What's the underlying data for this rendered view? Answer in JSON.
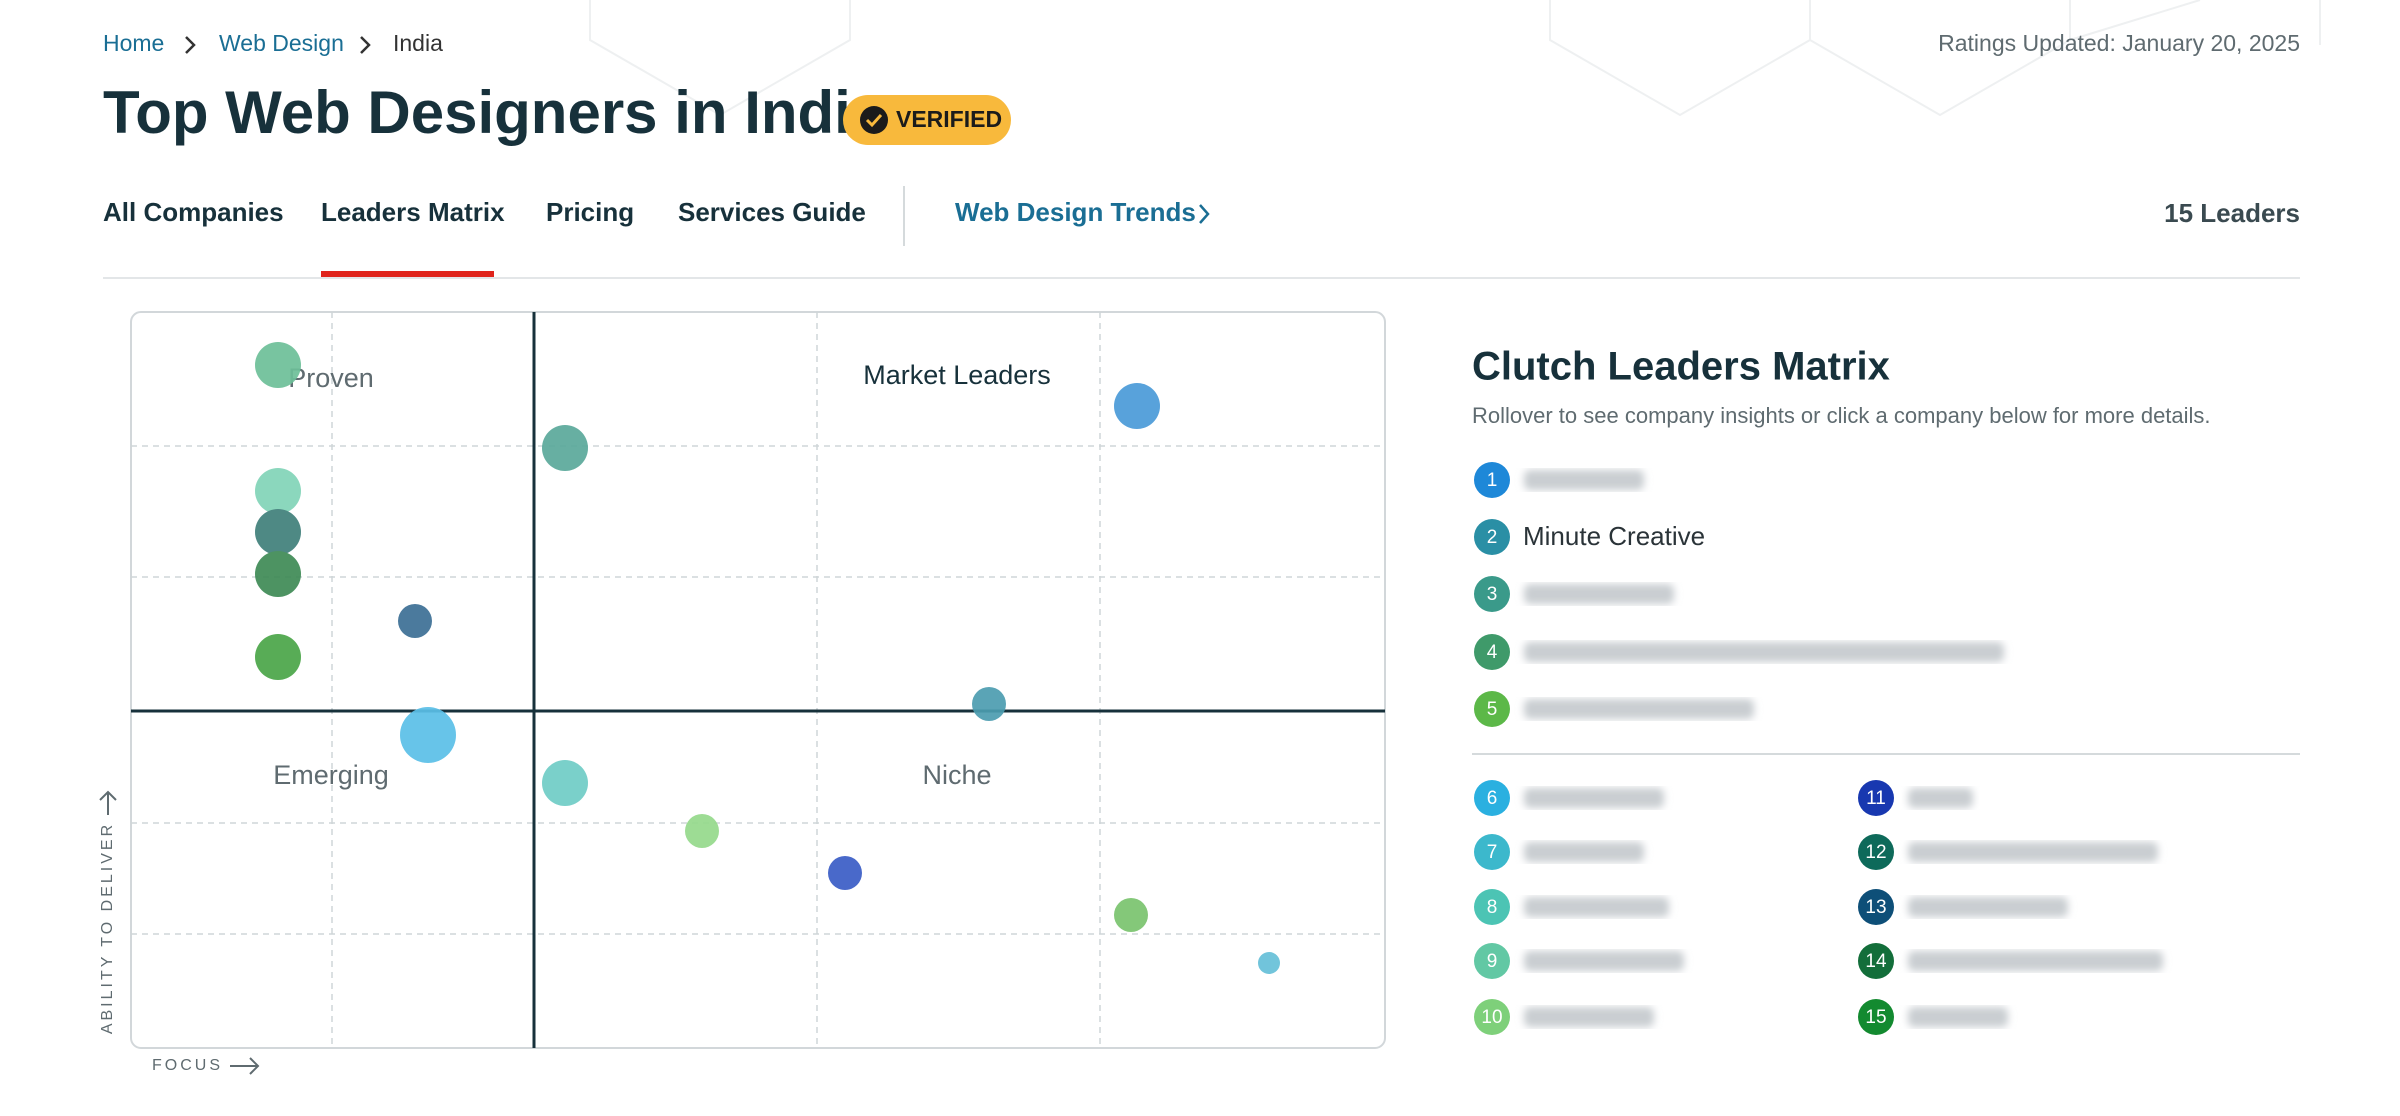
{
  "breadcrumb": [
    "Home",
    "Web Design",
    "India"
  ],
  "ratings_updated": "Ratings Updated: January 20, 2025",
  "title": "Top Web Designers in India",
  "badge": "VERIFIED",
  "nav": [
    "All Companies",
    "Leaders Matrix",
    "Pricing",
    "Services Guide"
  ],
  "trends_link": "Web Design Trends",
  "leaders_count": "15 Leaders",
  "matrix": {
    "quadrants": [
      "Proven",
      "Market Leaders",
      "Emerging",
      "Niche"
    ],
    "y_axis_label": "ABILITY TO DELIVER",
    "x_axis_label": "FOCUS"
  },
  "panel": {
    "title": "Clutch Leaders Matrix",
    "subtitle": "Rollover to see company insights or click a company below for more details.",
    "leaders": [
      {
        "number": 1,
        "color": "#1e88d8"
      },
      {
        "number": 2,
        "color": "#2a8fa5",
        "name": "Minute Creative"
      },
      {
        "number": 3,
        "color": "#3a9a8a"
      },
      {
        "number": 4,
        "color": "#3f9a6a"
      },
      {
        "number": 5,
        "color": "#5cb848"
      },
      {
        "number": 6,
        "color": "#2ab0e0"
      },
      {
        "number": 7,
        "color": "#3cb8cc"
      },
      {
        "number": 8,
        "color": "#4cc4b4"
      },
      {
        "number": 9,
        "color": "#62c8a4"
      },
      {
        "number": 10,
        "color": "#7ed07a"
      },
      {
        "number": 11,
        "color": "#1838b0"
      },
      {
        "number": 12,
        "color": "#0e6a5a"
      },
      {
        "number": 13,
        "color": "#0e4f78"
      },
      {
        "number": 14,
        "color": "#136e3a"
      },
      {
        "number": 15,
        "color": "#138a30"
      }
    ]
  }
}
